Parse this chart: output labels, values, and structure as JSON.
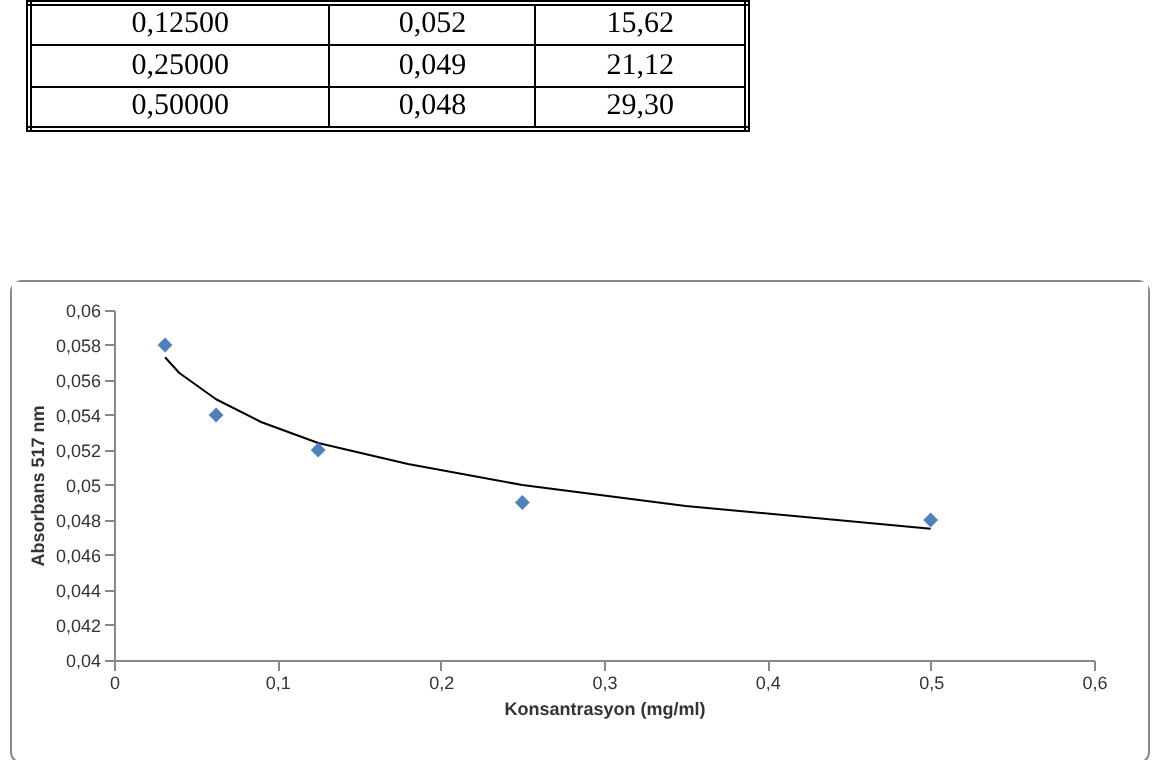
{
  "chart_data": [
    {
      "type": "other",
      "annotations": [
        "0,12500",
        "0,052",
        "15,62",
        "0,25000",
        "0,049",
        "21,12",
        "0,50000",
        "0,048",
        "29,30"
      ]
    },
    {
      "type": "scatter",
      "xlabel": "Konsantrasyon (mg/ml)",
      "ylabel": "Absorbans 517 nm",
      "grid": false,
      "xlim": [
        0,
        0.6
      ],
      "ylim": [
        0.04,
        0.06
      ],
      "xticks": [
        0,
        {
          "value": 0.1,
          "label": "0,1"
        },
        {
          "value": 0.2,
          "label": "0,2"
        },
        {
          "value": 0.3,
          "label": "0,3"
        },
        {
          "value": 0.4,
          "label": "0,4"
        },
        {
          "value": 0.5,
          "label": "0,5"
        },
        {
          "value": 0.6,
          "label": "0,6"
        }
      ],
      "yticks": [
        {
          "value": 0.04,
          "label": "0,04"
        },
        {
          "value": 0.042,
          "label": "0,042"
        },
        {
          "value": 0.044,
          "label": "0,044"
        },
        {
          "value": 0.046,
          "label": "0,046"
        },
        {
          "value": 0.048,
          "label": "0,048"
        },
        {
          "value": 0.05,
          "label": "0,05"
        },
        {
          "value": 0.052,
          "label": "0,052"
        },
        {
          "value": 0.054,
          "label": "0,054"
        },
        {
          "value": 0.056,
          "label": "0,056"
        },
        {
          "value": 0.058,
          "label": "0,058"
        },
        {
          "value": 0.06,
          "label": "0,06"
        }
      ],
      "series": [
        {
          "type": "scatter",
          "marker": "diamond",
          "color": "#4f81bd",
          "x": [
            0.03125,
            0.0625,
            0.125,
            0.25,
            0.5
          ],
          "values": [
            0.058,
            0.054,
            0.052,
            0.049,
            0.048
          ]
        },
        {
          "type": "line",
          "marker": "none",
          "color": "#000000",
          "x": [
            0.03125,
            0.04,
            0.0625,
            0.09,
            0.125,
            0.18,
            0.25,
            0.35,
            0.5
          ],
          "values": [
            0.0573,
            0.0564,
            0.0549,
            0.0536,
            0.0524,
            0.0512,
            0.05,
            0.0488,
            0.0475
          ]
        }
      ]
    }
  ]
}
